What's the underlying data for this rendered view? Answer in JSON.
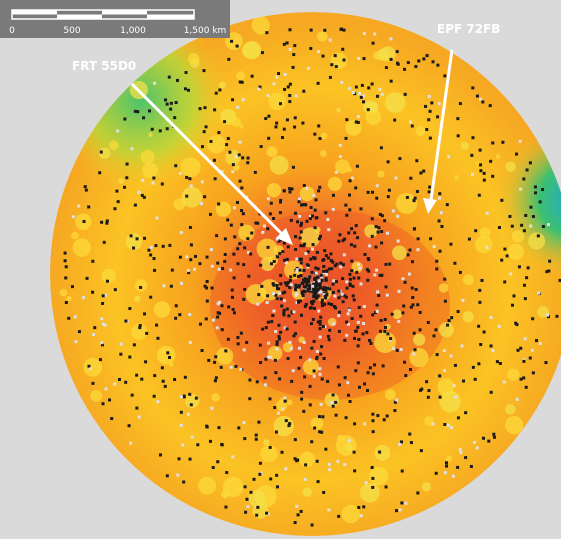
{
  "scale_bar": {
    "labels": [
      "0",
      "500",
      "1,000",
      "1,500 km"
    ]
  },
  "annotations": [
    {
      "label": "FRT 55D0"
    },
    {
      "label": "EPF 72FB"
    }
  ]
}
